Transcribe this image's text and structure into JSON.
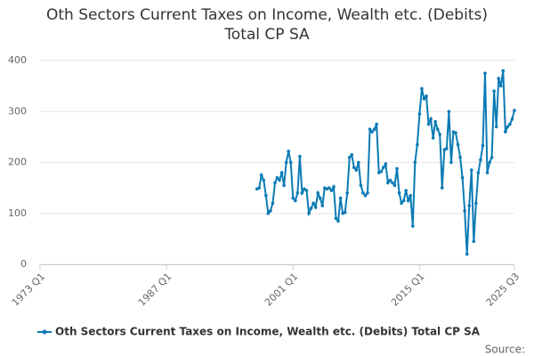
{
  "chart_data": {
    "type": "line",
    "title": "Oth Sectors Current Taxes on Income, Wealth etc. (Debits) Total CP SA",
    "source_label": "Source:",
    "xlim": [
      "1973 Q1",
      "2025 Q3"
    ],
    "xticks": [
      "1973 Q1",
      "1987 Q1",
      "2001 Q1",
      "2015 Q1",
      "2025 Q3"
    ],
    "ylim": [
      0,
      400
    ],
    "yticks": [
      0,
      100,
      200,
      300,
      400
    ],
    "grid": true,
    "x": [
      "1997 Q1",
      "1997 Q2",
      "1997 Q3",
      "1997 Q4",
      "1998 Q1",
      "1998 Q2",
      "1998 Q3",
      "1998 Q4",
      "1999 Q1",
      "1999 Q2",
      "1999 Q3",
      "1999 Q4",
      "2000 Q1",
      "2000 Q2",
      "2000 Q3",
      "2000 Q4",
      "2001 Q1",
      "2001 Q2",
      "2001 Q3",
      "2001 Q4",
      "2002 Q1",
      "2002 Q2",
      "2002 Q3",
      "2002 Q4",
      "2003 Q1",
      "2003 Q2",
      "2003 Q3",
      "2003 Q4",
      "2004 Q1",
      "2004 Q2",
      "2004 Q3",
      "2004 Q4",
      "2005 Q1",
      "2005 Q2",
      "2005 Q3",
      "2005 Q4",
      "2006 Q1",
      "2006 Q2",
      "2006 Q3",
      "2006 Q4",
      "2007 Q1",
      "2007 Q2",
      "2007 Q3",
      "2007 Q4",
      "2008 Q1",
      "2008 Q2",
      "2008 Q3",
      "2008 Q4",
      "2009 Q1",
      "2009 Q2",
      "2009 Q3",
      "2009 Q4",
      "2010 Q1",
      "2010 Q2",
      "2010 Q3",
      "2010 Q4",
      "2011 Q1",
      "2011 Q2",
      "2011 Q3",
      "2011 Q4",
      "2012 Q1",
      "2012 Q2",
      "2012 Q3",
      "2012 Q4",
      "2013 Q1",
      "2013 Q2",
      "2013 Q3",
      "2013 Q4",
      "2014 Q1",
      "2014 Q2",
      "2014 Q3",
      "2014 Q4",
      "2015 Q1",
      "2015 Q2",
      "2015 Q3",
      "2015 Q4",
      "2016 Q1",
      "2016 Q2",
      "2016 Q3",
      "2016 Q4",
      "2017 Q1",
      "2017 Q2",
      "2017 Q3",
      "2017 Q4",
      "2018 Q1",
      "2018 Q2",
      "2018 Q3",
      "2018 Q4",
      "2019 Q1",
      "2019 Q2",
      "2019 Q3",
      "2019 Q4",
      "2020 Q1",
      "2020 Q2",
      "2020 Q3",
      "2020 Q4",
      "2021 Q1",
      "2021 Q2",
      "2021 Q3",
      "2021 Q4",
      "2022 Q1",
      "2022 Q2",
      "2022 Q3",
      "2022 Q4",
      "2023 Q1",
      "2023 Q2",
      "2023 Q3",
      "2023 Q4",
      "2024 Q1",
      "2024 Q2",
      "2024 Q3",
      "2024 Q4",
      "2025 Q1",
      "2025 Q2",
      "2025 Q3"
    ],
    "series": [
      {
        "name": "Oth Sectors Current Taxes on Income, Wealth etc. (Debits) Total CP SA",
        "color": "#0b7bb5",
        "values": [
          148,
          150,
          175,
          165,
          135,
          100,
          105,
          120,
          160,
          170,
          165,
          180,
          155,
          200,
          222,
          200,
          130,
          125,
          140,
          212,
          140,
          148,
          145,
          100,
          110,
          120,
          112,
          140,
          130,
          115,
          150,
          148,
          150,
          145,
          152,
          90,
          85,
          130,
          100,
          102,
          140,
          210,
          215,
          190,
          185,
          200,
          155,
          140,
          135,
          140,
          265,
          260,
          265,
          275,
          180,
          182,
          190,
          197,
          160,
          165,
          160,
          155,
          188,
          140,
          120,
          125,
          145,
          125,
          135,
          75,
          200,
          235,
          295,
          345,
          325,
          330,
          275,
          285,
          248,
          280,
          265,
          255,
          150,
          225,
          227,
          300,
          200,
          260,
          258,
          235,
          210,
          170,
          105,
          20,
          115,
          185,
          45,
          120,
          180,
          205,
          233,
          375,
          180,
          200,
          210,
          340,
          270,
          365,
          350,
          380,
          260,
          270,
          275,
          285,
          302
        ]
      }
    ]
  }
}
